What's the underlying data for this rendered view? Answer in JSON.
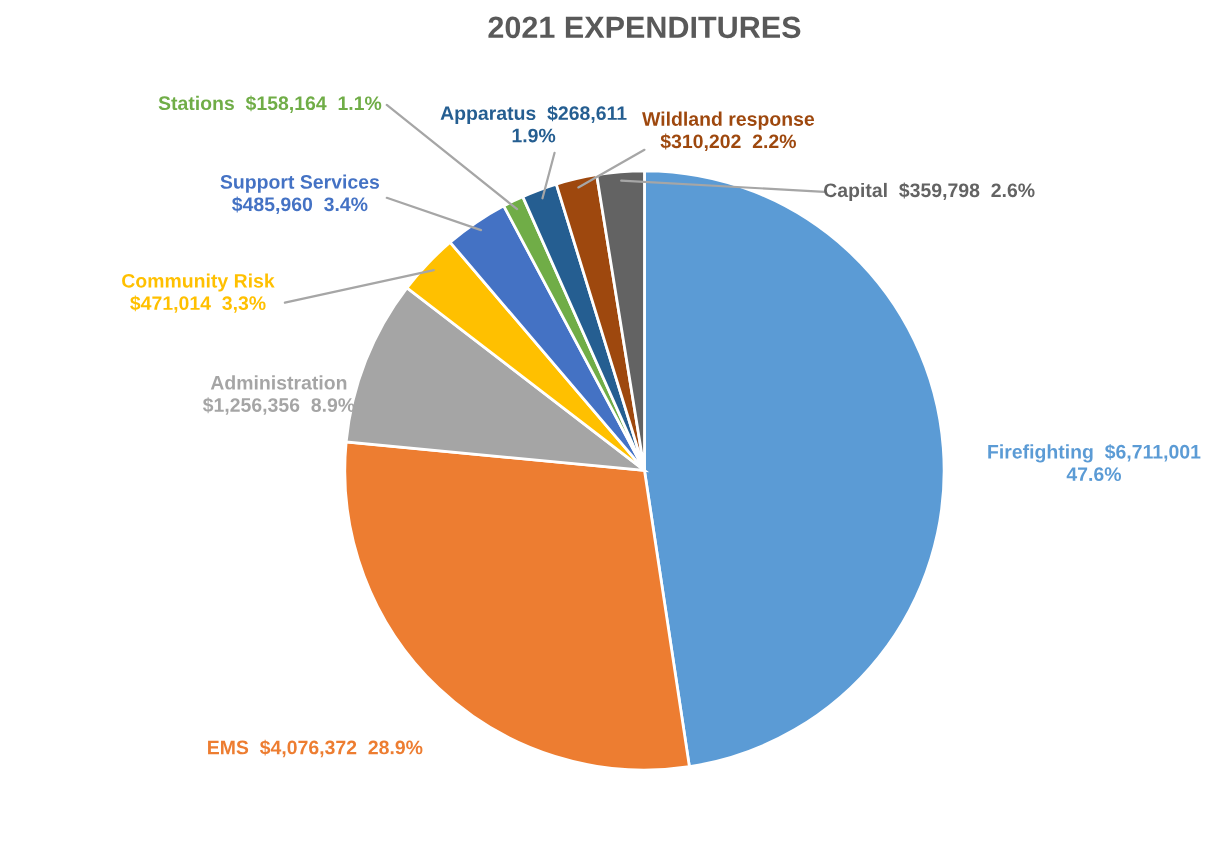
{
  "chart_data": {
    "type": "pie",
    "title": "2021 EXPENDITURES",
    "categories": [
      "Firefighting",
      "EMS",
      "Administration",
      "Community Risk",
      "Support Services",
      "Stations",
      "Apparatus",
      "Wildland response",
      "Capital"
    ],
    "values": [
      6711001,
      4076372,
      1256356,
      471014,
      485960,
      158164,
      268611,
      310202,
      359798
    ],
    "value_labels": [
      "$6,711,001\n47.6%",
      "$4,076,372  28.9%",
      "$1,256,356  8.9%",
      "$471,014  3,3%",
      "$485,960  3.4%",
      "$158,164  1.1%",
      "$268,611\n1.9%",
      "$310,202  2.2%",
      "$359,798  2.6%"
    ],
    "colors": [
      "#5b9bd5",
      "#ed7d31",
      "#a5a5a5",
      "#ffc000",
      "#4472c4",
      "#70ad47",
      "#255e91",
      "#9e480e",
      "#636363"
    ],
    "legend": false
  }
}
